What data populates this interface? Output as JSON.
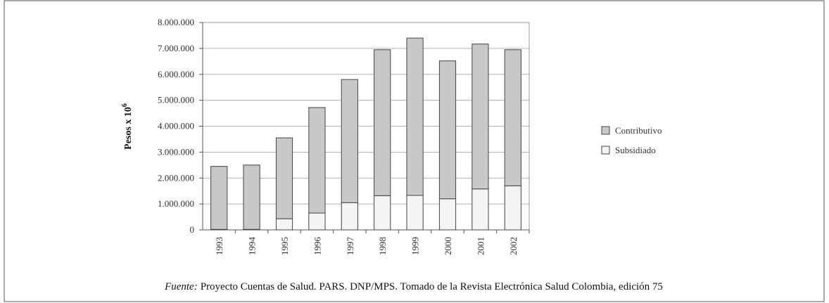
{
  "chart_data": {
    "type": "bar",
    "stacked": true,
    "y_label": "Pesos x 10",
    "y_label_superscript": "6",
    "source_prefix": "Fuente:",
    "source": "Proyecto Cuentas de Salud. PARS. DNP/MPS. Tomado de la Revista Electrónica Salud Colombia, edición 75",
    "categories": [
      "1993",
      "1994",
      "1995",
      "1996",
      "1997",
      "1998",
      "1999",
      "2000",
      "2001",
      "2002"
    ],
    "series": [
      {
        "name": "Subsidiado",
        "color": "#f4f4f4",
        "values": [
          20000,
          20000,
          430000,
          650000,
          1050000,
          1320000,
          1330000,
          1200000,
          1580000,
          1700000
        ]
      },
      {
        "name": "Contributivo",
        "color": "#c8c8c8",
        "values": [
          2430000,
          2480000,
          3120000,
          4070000,
          4750000,
          5630000,
          6070000,
          5320000,
          5590000,
          5250000
        ]
      }
    ],
    "legend_order": [
      1,
      0
    ],
    "ylim": [
      0,
      8000000
    ],
    "yticks": [
      0,
      {
        "value": 1000000,
        "label": "1.000.000"
      },
      {
        "value": 2000000,
        "label": "2.000.000"
      },
      {
        "value": 3000000,
        "label": "3.000.000"
      },
      {
        "value": 4000000,
        "label": "4.000.000"
      },
      {
        "value": 5000000,
        "label": "5.000.000"
      },
      {
        "value": 6000000,
        "label": "6.000.000"
      },
      {
        "value": 7000000,
        "label": "7.000.000"
      },
      {
        "value": 8000000,
        "label": "8.000.000"
      }
    ],
    "grid": true,
    "legend": "right"
  }
}
